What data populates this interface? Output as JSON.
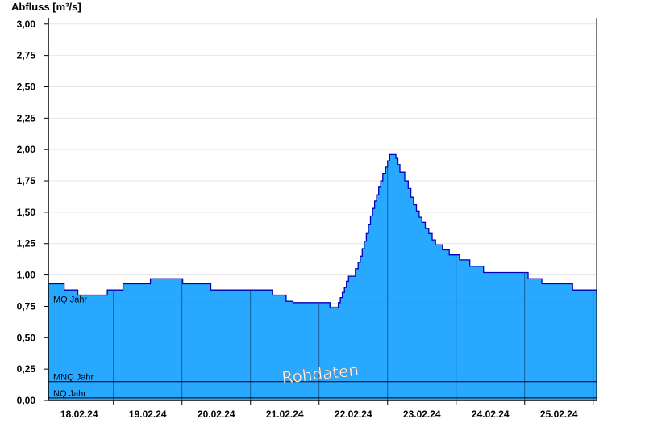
{
  "chart_data": {
    "type": "area",
    "ylabel": "Abfluss [m³/s]",
    "ylim": [
      0,
      3.05
    ],
    "yticks": [
      "0,00",
      "0,25",
      "0,50",
      "0,75",
      "1,00",
      "1,25",
      "1,50",
      "1,75",
      "2,00",
      "2,25",
      "2,50",
      "2,75",
      "3,00"
    ],
    "ytick_values": [
      0,
      0.25,
      0.5,
      0.75,
      1.0,
      1.25,
      1.5,
      1.75,
      2.0,
      2.25,
      2.5,
      2.75,
      3.0
    ],
    "xlim_days": [
      17.55,
      25.55
    ],
    "xticks": [
      "18.02.24",
      "19.02.24",
      "20.02.24",
      "21.02.24",
      "22.02.24",
      "23.02.24",
      "24.02.24",
      "25.02.24"
    ],
    "grid": true,
    "colors": {
      "fill": "#29a8ff",
      "outline": "#0000b4",
      "mq_line": "#2e9a2e",
      "mnq_line": "#000000",
      "nq_line": "#000000"
    },
    "series": [
      {
        "x": [
          17.55,
          17.77,
          17.78,
          17.97,
          17.98,
          18.2,
          18.21,
          18.3,
          18.31,
          18.4,
          18.41,
          18.63,
          18.64,
          19.03,
          19.04,
          19.2,
          19.21,
          19.5,
          19.51,
          19.7,
          19.71,
          19.9,
          19.92,
          20.8,
          20.82,
          21.0,
          21.02,
          21.1,
          21.12,
          21.15,
          21.18,
          21.21,
          21.24,
          21.27,
          21.3,
          21.33,
          21.36,
          21.39,
          21.42,
          21.45,
          21.48,
          21.51,
          21.54,
          21.57,
          21.6,
          21.63,
          21.66,
          21.69,
          21.72,
          21.75,
          21.78,
          21.81,
          21.84,
          21.87,
          21.9,
          21.93,
          22.03,
          22.07,
          22.1,
          22.13,
          22.16,
          22.19,
          22.22,
          22.25,
          22.28,
          22.31,
          22.34,
          22.37,
          22.4,
          22.43,
          22.47,
          22.5,
          22.53,
          22.56,
          22.59,
          22.62,
          22.65,
          22.68,
          22.75,
          22.8,
          22.84,
          22.88,
          22.92,
          22.96,
          23.0,
          23.05,
          23.1,
          23.15,
          23.2,
          23.3,
          23.4,
          23.55,
          23.7,
          23.9,
          24.15,
          24.55,
          24.75,
          25.2,
          25.55
        ],
        "y": [
          0.93,
          0.93,
          0.88,
          0.88,
          0.84,
          0.84,
          0.84,
          0.84,
          0.84,
          0.84,
          0.88,
          0.88,
          0.93,
          0.93,
          0.97,
          0.97,
          0.97,
          0.97,
          0.93,
          0.93,
          0.93,
          0.93,
          0.88,
          0.88,
          0.84,
          0.84,
          0.79,
          0.79,
          0.78,
          0.78,
          0.78,
          0.78,
          0.78,
          0.78,
          0.78,
          0.78,
          0.78,
          0.78,
          0.78,
          0.78,
          0.78,
          0.78,
          0.78,
          0.78,
          0.78,
          0.78,
          0.74,
          0.74,
          0.74,
          0.74,
          0.78,
          0.82,
          0.86,
          0.9,
          0.95,
          0.99,
          1.05,
          1.1,
          1.15,
          1.21,
          1.27,
          1.33,
          1.4,
          1.47,
          1.53,
          1.59,
          1.64,
          1.7,
          1.75,
          1.81,
          1.86,
          1.91,
          1.96,
          1.96,
          1.96,
          1.93,
          1.88,
          1.82,
          1.75,
          1.69,
          1.62,
          1.56,
          1.51,
          1.46,
          1.42,
          1.37,
          1.33,
          1.28,
          1.24,
          1.2,
          1.16,
          1.12,
          1.07,
          1.02,
          1.02,
          0.97,
          0.93,
          0.88,
          0.84
        ]
      }
    ],
    "reference_lines": [
      {
        "label": "MQ Jahr",
        "value": 0.77
      },
      {
        "label": "MNQ Jahr",
        "value": 0.15
      },
      {
        "label": "NQ Jahr",
        "value": 0.02
      }
    ],
    "watermark": "Rohdaten"
  }
}
